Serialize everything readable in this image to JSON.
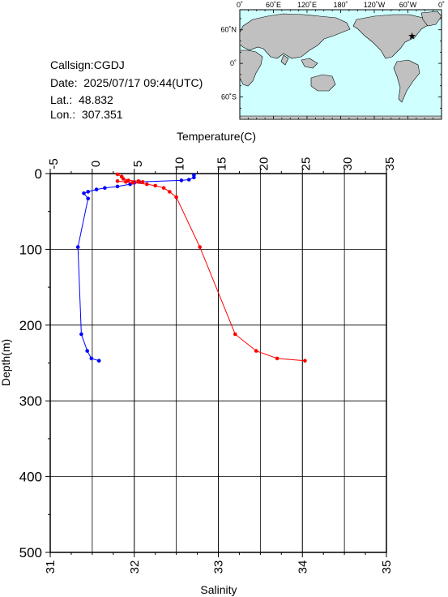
{
  "info": {
    "callsign": "Callsign:CGDJ",
    "date": "Date:  2025/07/17 09:44(UTC)",
    "lat": "Lat.:  48.832",
    "lon": "Lon.:  307.351"
  },
  "map": {
    "top_labels": [
      "0˚",
      "60˚E",
      "120˚E",
      "180˚",
      "120˚W",
      "60˚W",
      "0˚"
    ],
    "left_labels": [
      "60˚N",
      "0˚",
      "60˚S"
    ],
    "land_color": "#c0c0c0",
    "ocean_color": "#cfffff",
    "marker_color": "#ff0000",
    "marker_lon_label": "307.351",
    "marker_lat_label": "48.832"
  },
  "chart_data": {
    "type": "line",
    "title": "",
    "temperature_axis": {
      "label": "Temperature(C)",
      "range": [
        -5,
        35
      ],
      "ticks": [
        "-5",
        "0",
        "5",
        "10",
        "15",
        "20",
        "25",
        "30",
        "35"
      ]
    },
    "salinity_axis": {
      "label": "Salinity",
      "range": [
        31,
        35
      ],
      "ticks": [
        "31",
        "32",
        "33",
        "34",
        "35"
      ]
    },
    "depth_axis": {
      "label": "Depth(m)",
      "range": [
        0,
        500
      ],
      "inverted": true,
      "ticks": [
        "0",
        "100",
        "200",
        "300",
        "400",
        "500"
      ]
    },
    "grid": true,
    "series": [
      {
        "key": "salinity",
        "color": "#0000ff",
        "axis": "salinity",
        "points": [
          [
            32.71,
            2
          ],
          [
            32.71,
            5
          ],
          [
            32.65,
            8
          ],
          [
            32.56,
            9
          ],
          [
            32.06,
            11
          ],
          [
            32.0,
            12
          ],
          [
            31.95,
            14
          ],
          [
            31.8,
            17
          ],
          [
            31.65,
            19
          ],
          [
            31.55,
            21
          ],
          [
            31.45,
            24
          ],
          [
            31.4,
            26
          ],
          [
            31.45,
            33
          ],
          [
            31.33,
            97
          ],
          [
            31.37,
            212
          ],
          [
            31.44,
            234
          ],
          [
            31.49,
            244
          ],
          [
            31.58,
            247
          ]
        ]
      },
      {
        "key": "temperature",
        "color": "#ff0000",
        "axis": "temperature",
        "points": [
          [
            3.0,
            1
          ],
          [
            3.5,
            4
          ],
          [
            3.7,
            7
          ],
          [
            4.3,
            9
          ],
          [
            5.5,
            10
          ],
          [
            6.0,
            11
          ],
          [
            4.8,
            12
          ],
          [
            3.0,
            10
          ],
          [
            4.0,
            11
          ],
          [
            6.5,
            14
          ],
          [
            7.5,
            16
          ],
          [
            8.5,
            19
          ],
          [
            9.2,
            24
          ],
          [
            10.0,
            31
          ],
          [
            12.8,
            97
          ],
          [
            17.0,
            212
          ],
          [
            19.5,
            234
          ],
          [
            22.0,
            244
          ],
          [
            25.3,
            247
          ]
        ]
      }
    ]
  }
}
